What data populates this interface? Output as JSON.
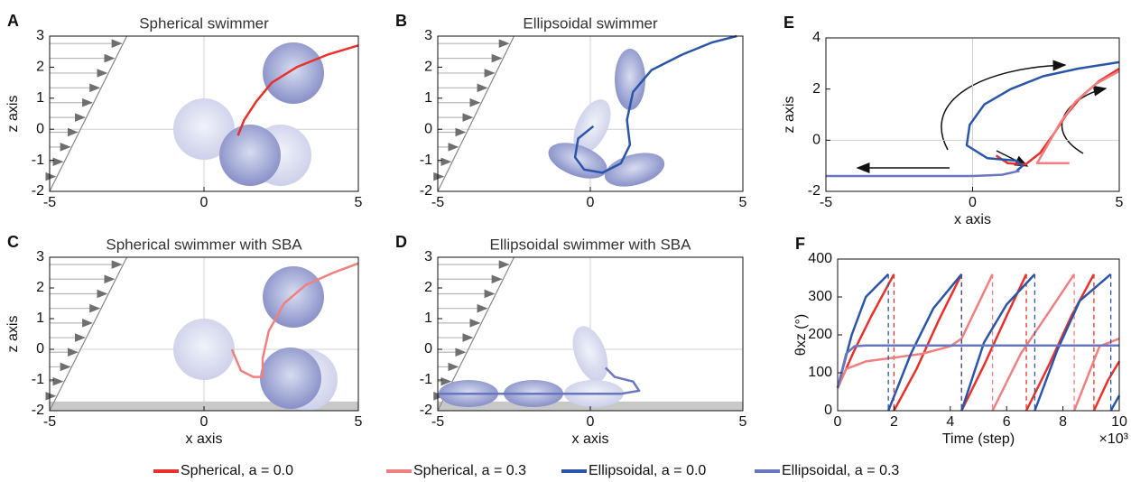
{
  "chart_data": [
    {
      "type": "line",
      "panel": "A",
      "title": "Spherical swimmer",
      "ylabel": "z axis",
      "xlim": [
        -5,
        5
      ],
      "ylim": [
        -2,
        3
      ],
      "xticks": [
        -5,
        0,
        5
      ],
      "yticks": [
        -2,
        -1,
        0,
        1,
        2,
        3
      ],
      "zero_lines": true,
      "flow": true,
      "series": [
        {
          "color": "#e8312a",
          "x": [
            1.1,
            1.3,
            1.7,
            2.2,
            3,
            4,
            5
          ],
          "values": [
            -0.2,
            0.3,
            0.9,
            1.5,
            2.0,
            2.4,
            2.7
          ]
        }
      ]
    },
    {
      "type": "line",
      "panel": "B",
      "title": "Ellipsoidal swimmer",
      "xlim": [
        -5,
        5
      ],
      "ylim": [
        -2,
        3
      ],
      "xticks": [
        -5,
        0,
        5
      ],
      "yticks": [
        -2,
        -1,
        0,
        1,
        2,
        3
      ],
      "zero_lines": true,
      "flow": true,
      "series": [
        {
          "color": "#2b55a8",
          "x": [
            0.1,
            -0.4,
            -0.5,
            -0.2,
            0.4,
            1.0,
            1.3,
            1.2,
            1.4,
            2.0,
            3,
            4,
            4.8
          ],
          "values": [
            0.1,
            -0.3,
            -0.9,
            -1.3,
            -1.4,
            -1.1,
            -0.5,
            0.3,
            1.2,
            1.9,
            2.4,
            2.8,
            3.0
          ]
        }
      ]
    },
    {
      "type": "line",
      "panel": "C",
      "title": "Spherical swimmer with SBA",
      "xlabel": "x axis",
      "ylabel": "z axis",
      "xlim": [
        -5,
        5
      ],
      "ylim": [
        -2,
        3
      ],
      "xticks": [
        -5,
        0,
        5
      ],
      "yticks": [
        -2,
        -1,
        0,
        1,
        2,
        3
      ],
      "zero_lines": true,
      "flow": true,
      "floor": -1.7,
      "series": [
        {
          "color": "#f08080",
          "x": [
            0.9,
            1.2,
            1.6,
            1.9,
            1.9,
            2.1,
            2.6,
            3.3,
            4.2,
            5
          ],
          "values": [
            0.0,
            -0.7,
            -0.9,
            -0.9,
            -0.3,
            0.6,
            1.5,
            2.1,
            2.5,
            2.8
          ]
        }
      ]
    },
    {
      "type": "line",
      "panel": "D",
      "title": "Ellipsoidal swimmer with SBA",
      "xlabel": "x axis",
      "xlim": [
        -5,
        5
      ],
      "ylim": [
        -2,
        3
      ],
      "xticks": [
        -5,
        0,
        5
      ],
      "yticks": [
        -2,
        -1,
        0,
        1,
        2,
        3
      ],
      "zero_lines": true,
      "flow": true,
      "floor": -1.7,
      "series": [
        {
          "color": "#6a77c0",
          "x": [
            -5,
            -3,
            -1,
            0,
            1,
            1.6,
            1.4,
            0.8,
            0.5
          ],
          "values": [
            -1.45,
            -1.45,
            -1.45,
            -1.45,
            -1.45,
            -1.35,
            -1.05,
            -0.9,
            -0.6
          ]
        }
      ]
    },
    {
      "type": "line",
      "panel": "E",
      "xlabel": "x axis",
      "ylabel": "z axis",
      "xlim": [
        -5,
        5
      ],
      "ylim": [
        -2,
        4
      ],
      "xticks": [
        -5,
        0,
        5
      ],
      "yticks": [
        -2,
        0,
        2,
        4
      ],
      "zero_lines": true,
      "series": [
        {
          "name": "Spherical,  a = 0.0",
          "color": "#e8312a",
          "x": [
            0.8,
            1.2,
            1.8,
            2.3,
            2.8,
            3.2,
            3.7,
            4.3,
            5
          ],
          "values": [
            -0.6,
            -0.9,
            -0.95,
            -0.5,
            0.3,
            1.0,
            1.7,
            2.3,
            2.8
          ]
        },
        {
          "name": "Spherical,  a = 0.3",
          "color": "#f08080",
          "x": [
            3.3,
            2.2,
            2.5,
            3.0,
            3.5,
            4.2,
            5
          ],
          "values": [
            -0.9,
            -0.9,
            -0.3,
            0.7,
            1.5,
            2.2,
            2.7
          ]
        },
        {
          "name": "Ellipsoidal,  a = 0.0",
          "color": "#2b55a8",
          "x": [
            1.5,
            1.7,
            1.5,
            0.5,
            -0.2,
            -0.1,
            0.4,
            1.3,
            2.4,
            3.6,
            5
          ],
          "values": [
            -1.2,
            -1.0,
            -0.8,
            -0.7,
            -0.2,
            0.6,
            1.4,
            2.0,
            2.5,
            2.8,
            3.05
          ]
        },
        {
          "name": "Ellipsoidal,  a = 0.3",
          "color": "#6a77c0",
          "x": [
            -5,
            -2,
            0,
            1,
            1.6
          ],
          "values": [
            -1.4,
            -1.4,
            -1.4,
            -1.35,
            -1.2
          ]
        }
      ]
    },
    {
      "type": "line",
      "panel": "F",
      "xlabel": "Time (step)",
      "ylabel": "θxz (°)",
      "x_multiplier": "×10³",
      "xlim": [
        0,
        10
      ],
      "ylim": [
        0,
        400
      ],
      "xticks": [
        0,
        2,
        4,
        6,
        8,
        10
      ],
      "yticks": [
        0,
        100,
        200,
        300,
        400
      ],
      "wrap_lines": true,
      "series": [
        {
          "name": "Spherical,  a = 0.0",
          "color": "#e8312a",
          "x": [
            0,
            0.6,
            1.2,
            2.0,
            null,
            2.0,
            2.8,
            3.6,
            4.4,
            null,
            4.4,
            5.2,
            6.0,
            6.7,
            null,
            6.7,
            7.5,
            8.3,
            9.1,
            null,
            9.1,
            9.6,
            10
          ],
          "values": [
            60,
            160,
            250,
            360,
            null,
            0,
            110,
            240,
            360,
            null,
            0,
            120,
            250,
            360,
            null,
            0,
            120,
            250,
            360,
            null,
            0,
            80,
            130
          ]
        },
        {
          "name": "Spherical,  a = 0.3",
          "color": "#f08080",
          "x": [
            0,
            0.3,
            1,
            2,
            3,
            4,
            4.4,
            5.5,
            null,
            5.5,
            6.5,
            7.5,
            8.4,
            null,
            8.4,
            9.3,
            10
          ],
          "values": [
            60,
            110,
            130,
            140,
            150,
            170,
            190,
            360,
            null,
            0,
            150,
            260,
            360,
            null,
            0,
            170,
            190
          ]
        },
        {
          "name": "Ellipsoidal,  a = 0.0",
          "color": "#2b55a8",
          "x": [
            0,
            0.5,
            1,
            1.8,
            null,
            1.8,
            2.6,
            3.4,
            4.4,
            null,
            4.4,
            5.2,
            6,
            7.0,
            null,
            7.0,
            7.8,
            8.6,
            9.7,
            null,
            9.7,
            10
          ],
          "values": [
            60,
            200,
            300,
            360,
            null,
            0,
            150,
            270,
            360,
            null,
            0,
            180,
            280,
            360,
            null,
            0,
            160,
            290,
            360,
            null,
            0,
            40
          ]
        },
        {
          "name": "Ellipsoidal,  a = 0.3",
          "color": "#6a77c0",
          "x": [
            0,
            0.3,
            0.6,
            1,
            5,
            10
          ],
          "values": [
            60,
            150,
            170,
            172,
            172,
            172
          ]
        }
      ]
    }
  ]
}
